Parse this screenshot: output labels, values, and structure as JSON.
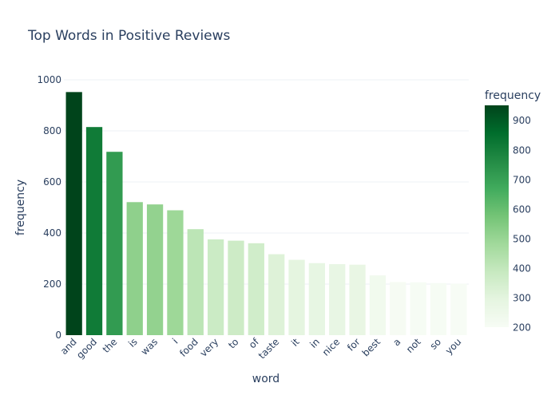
{
  "chart_data": {
    "type": "bar",
    "title": "Top Words in Positive Reviews",
    "xlabel": "word",
    "ylabel": "frequency",
    "ylim": [
      0,
      1000
    ],
    "yticks": [
      0,
      200,
      400,
      600,
      800,
      1000
    ],
    "grid": true,
    "categories": [
      "and",
      "good",
      "the",
      "is",
      "was",
      "i",
      "food",
      "very",
      "to",
      "of",
      "taste",
      "it",
      "in",
      "nice",
      "for",
      "best",
      "a",
      "not",
      "so",
      "you"
    ],
    "values": [
      952,
      815,
      718,
      521,
      512,
      489,
      415,
      375,
      370,
      360,
      317,
      295,
      282,
      278,
      276,
      234,
      208,
      207,
      204,
      201
    ],
    "colorbar": {
      "title": "frequency",
      "range": [
        201,
        952
      ],
      "ticks": [
        200,
        300,
        400,
        500,
        600,
        700,
        800,
        900
      ],
      "colorscale": "Greens",
      "stops": [
        "#f7fcf5",
        "#e5f5e0",
        "#c7e9c0",
        "#a1d99b",
        "#74c476",
        "#41ab5d",
        "#238b45",
        "#006d2c",
        "#00441b"
      ]
    }
  }
}
